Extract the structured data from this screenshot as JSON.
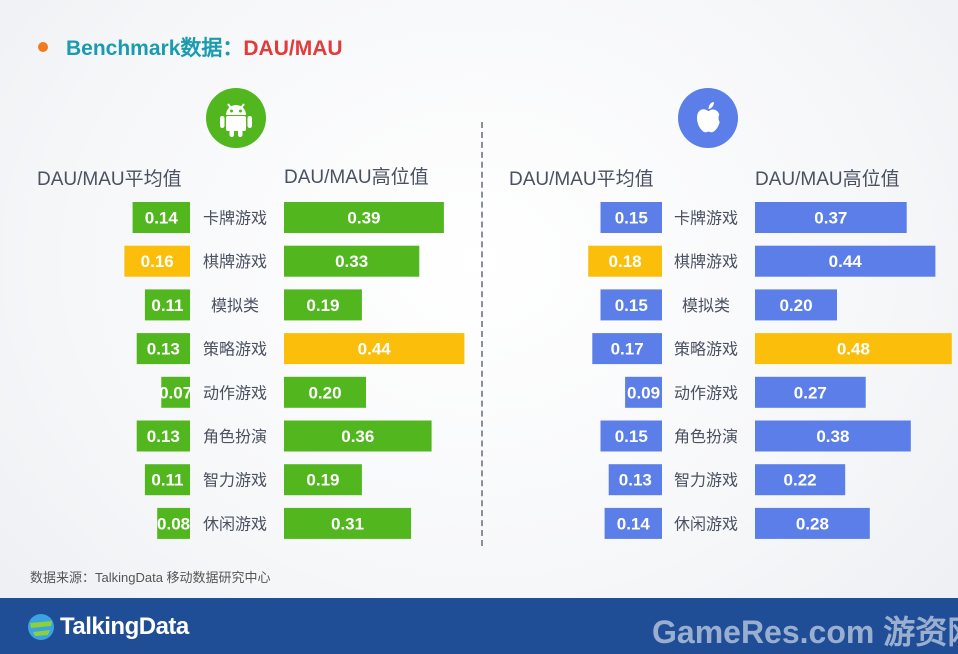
{
  "header": {
    "title_prefix": "Benchmark数据：",
    "title_metric": "DAU/MAU"
  },
  "colors": {
    "android": "#52b71f",
    "ios": "#5b7ee8",
    "highlight": "#fbbf0b",
    "title_teal": "#1a9bb0",
    "title_red": "#e23b3b"
  },
  "panels": {
    "android": {
      "icon": "android-icon",
      "avg_header": "DAU/MAU平均值",
      "high_header": "DAU/MAU高位值"
    },
    "ios": {
      "icon": "apple-icon",
      "avg_header": "DAU/MAU平均值",
      "high_header": "DAU/MAU高位值"
    }
  },
  "chart_data": [
    {
      "type": "bar",
      "platform": "android",
      "categories": [
        "卡牌游戏",
        "棋牌游戏",
        "模拟类",
        "策略游戏",
        "动作游戏",
        "角色扮演",
        "智力游戏",
        "休闲游戏"
      ],
      "series": [
        {
          "name": "DAU/MAU平均值",
          "values": [
            0.14,
            0.16,
            0.11,
            0.13,
            0.07,
            0.13,
            0.11,
            0.08
          ],
          "highlight_index": 1
        },
        {
          "name": "DAU/MAU高位值",
          "values": [
            0.39,
            0.33,
            0.19,
            0.44,
            0.2,
            0.36,
            0.19,
            0.31
          ],
          "highlight_index": 3
        }
      ]
    },
    {
      "type": "bar",
      "platform": "ios",
      "categories": [
        "卡牌游戏",
        "棋牌游戏",
        "模拟类",
        "策略游戏",
        "动作游戏",
        "角色扮演",
        "智力游戏",
        "休闲游戏"
      ],
      "series": [
        {
          "name": "DAU/MAU平均值",
          "values": [
            0.15,
            0.18,
            0.15,
            0.17,
            0.09,
            0.15,
            0.13,
            0.14
          ],
          "highlight_index": 1
        },
        {
          "name": "DAU/MAU高位值",
          "values": [
            0.37,
            0.44,
            0.2,
            0.48,
            0.27,
            0.38,
            0.22,
            0.28
          ],
          "highlight_index": 3
        }
      ]
    }
  ],
  "source": {
    "text": "数据来源：TalkingData 移动数据研究中心"
  },
  "footer": {
    "brand": "TalkingData",
    "watermark": "GameRes.com 游资网"
  }
}
